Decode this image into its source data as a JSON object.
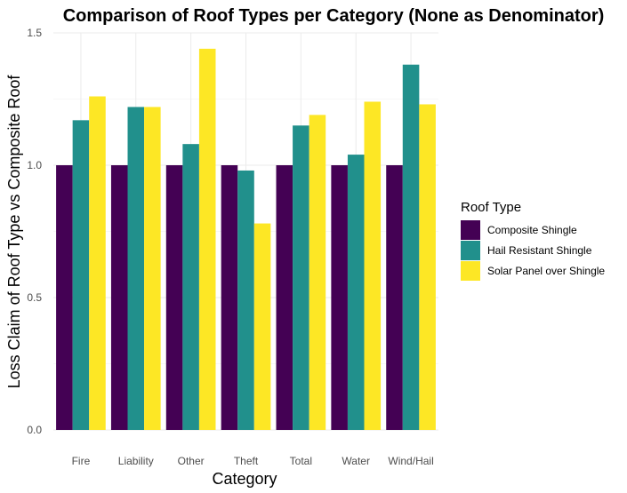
{
  "chart_data": {
    "type": "bar",
    "title": "Comparison of Roof Types per Category (None as Denominator)",
    "xlabel": "Category",
    "ylabel": "Loss Claim of Roof Type vs Composite Roof",
    "categories": [
      "Fire",
      "Liability",
      "Other",
      "Theft",
      "Total",
      "Water",
      "Wind/Hail"
    ],
    "ylim": [
      0,
      1.5
    ],
    "yticks": [
      0.0,
      0.5,
      1.0,
      1.5
    ],
    "ytick_labels": [
      "0.0",
      "0.5",
      "1.0",
      "1.5"
    ],
    "grid": true,
    "legend": {
      "title": "Roof Type",
      "position": "right"
    },
    "series": [
      {
        "name": "Composite Shingle",
        "color": "#440154",
        "values": [
          1.0,
          1.0,
          1.0,
          1.0,
          1.0,
          1.0,
          1.0
        ]
      },
      {
        "name": "Hail Resistant Shingle",
        "color": "#21908C",
        "values": [
          1.17,
          1.22,
          1.08,
          0.98,
          1.15,
          1.04,
          1.38
        ]
      },
      {
        "name": "Solar Panel over Shingle",
        "color": "#FDE725",
        "values": [
          1.26,
          1.22,
          1.44,
          0.78,
          1.19,
          1.24,
          1.23
        ]
      }
    ]
  }
}
